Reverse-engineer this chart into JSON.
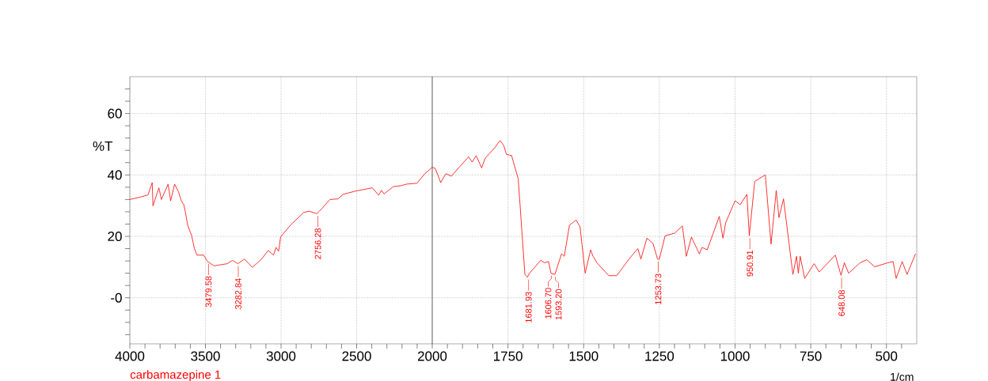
{
  "chart_data": [
    {
      "type": "line",
      "ylabel": "%T",
      "xlim": [
        4000,
        2000
      ],
      "ylim": [
        -15,
        72
      ],
      "grid": true,
      "marker": "none",
      "xticks": [
        4000,
        {
          "value": 3900,
          "label": null
        },
        {
          "value": 3800,
          "label": null
        },
        {
          "value": 3700,
          "label": null
        },
        {
          "value": 3600,
          "label": null
        },
        3500,
        {
          "value": 3400,
          "label": null
        },
        {
          "value": 3300,
          "label": null
        },
        {
          "value": 3200,
          "label": null
        },
        {
          "value": 3100,
          "label": null
        },
        3000,
        {
          "value": 2900,
          "label": null
        },
        {
          "value": 2800,
          "label": null
        },
        {
          "value": 2700,
          "label": null
        },
        {
          "value": 2600,
          "label": null
        },
        2500,
        {
          "value": 2400,
          "label": null
        },
        {
          "value": 2300,
          "label": null
        },
        {
          "value": 2200,
          "label": null
        },
        {
          "value": 2100,
          "label": null
        },
        2000
      ],
      "yticks": [
        {
          "value": -12,
          "label": null
        },
        {
          "value": -8,
          "label": null
        },
        {
          "value": -4,
          "label": null
        },
        {
          "value": 0,
          "label": "-0"
        },
        {
          "value": 4,
          "label": null
        },
        {
          "value": 8,
          "label": null
        },
        {
          "value": 12,
          "label": null
        },
        {
          "value": 16,
          "label": null
        },
        20,
        {
          "value": 24,
          "label": null
        },
        {
          "value": 28,
          "label": null
        },
        {
          "value": 32,
          "label": null
        },
        {
          "value": 36,
          "label": null
        },
        40,
        {
          "value": 44,
          "label": null
        },
        {
          "value": 48,
          "label": null
        },
        {
          "value": 52,
          "label": null
        },
        {
          "value": 56,
          "label": null
        },
        60,
        {
          "value": 64,
          "label": null
        },
        {
          "value": 68,
          "label": null
        }
      ],
      "x": [
        4000,
        3930,
        3880,
        3852,
        3847,
        3808,
        3791,
        3747,
        3730,
        3704,
        3678,
        3660,
        3643,
        3634,
        3617,
        3591,
        3573,
        3556,
        3512,
        3486,
        3443,
        3355,
        3321,
        3286,
        3242,
        3190,
        3129,
        3085,
        3050,
        3033,
        3016,
        3003,
        2937,
        2850,
        2815,
        2763,
        2746,
        2676,
        2624,
        2589,
        2502,
        2397,
        2354,
        2336,
        2319,
        2258,
        2206,
        2171,
        2101,
        2049,
        2000
      ],
      "series": [
        {
          "name": "carbamazepine 1",
          "color": "#ff0000",
          "values": [
            32.0,
            32.8,
            33.5,
            37.5,
            29.9,
            35.8,
            32.0,
            37.0,
            31.6,
            37.0,
            34.5,
            31.6,
            30.3,
            28.2,
            23.6,
            20.2,
            16.0,
            13.9,
            13.9,
            11.8,
            10.4,
            11.1,
            12.2,
            11.1,
            12.6,
            9.9,
            12.6,
            15.4,
            13.9,
            16.4,
            15.2,
            19.8,
            23.7,
            27.8,
            28.2,
            27.4,
            28.2,
            32.0,
            32.2,
            33.7,
            34.8,
            35.8,
            33.4,
            35.0,
            33.8,
            36.2,
            36.5,
            37.0,
            37.3,
            40.4,
            42.5
          ]
        }
      ],
      "annotations": [
        {
          "text": "3479.58",
          "x": 3479.58,
          "y": 11.8
        },
        {
          "text": "3282.84",
          "x": 3282.84,
          "y": 11.1
        },
        {
          "text": "2756.28",
          "x": 2756.28,
          "y": 27.4
        }
      ]
    },
    {
      "type": "line",
      "xlabel": "1/cm",
      "xlim": [
        2000,
        400
      ],
      "ylim": [
        -15,
        72
      ],
      "grid": true,
      "marker": "none",
      "tick_labels": "x",
      "xticks": [
        {
          "value": 1950,
          "label": null
        },
        {
          "value": 1900,
          "label": null
        },
        {
          "value": 1850,
          "label": null
        },
        {
          "value": 1800,
          "label": null
        },
        1750,
        {
          "value": 1700,
          "label": null
        },
        {
          "value": 1650,
          "label": null
        },
        {
          "value": 1600,
          "label": null
        },
        {
          "value": 1550,
          "label": null
        },
        1500,
        {
          "value": 1450,
          "label": null
        },
        {
          "value": 1400,
          "label": null
        },
        {
          "value": 1350,
          "label": null
        },
        {
          "value": 1300,
          "label": null
        },
        1250,
        {
          "value": 1200,
          "label": null
        },
        {
          "value": 1150,
          "label": null
        },
        {
          "value": 1100,
          "label": null
        },
        {
          "value": 1050,
          "label": null
        },
        1000,
        {
          "value": 950,
          "label": null
        },
        {
          "value": 900,
          "label": null
        },
        {
          "value": 850,
          "label": null
        },
        {
          "value": 800,
          "label": null
        },
        750,
        {
          "value": 700,
          "label": null
        },
        {
          "value": 650,
          "label": null
        },
        {
          "value": 600,
          "label": null
        },
        {
          "value": 550,
          "label": null
        },
        500,
        {
          "value": 450,
          "label": null
        }
      ],
      "yticks": [
        0,
        20,
        40,
        60
      ],
      "x": [
        2000,
        1990,
        1972,
        1955,
        1937,
        1911,
        1880,
        1868,
        1855,
        1837,
        1825,
        1794,
        1776,
        1764,
        1755,
        1738,
        1716,
        1703,
        1694,
        1686,
        1679,
        1660,
        1642,
        1629,
        1616,
        1608,
        1595,
        1573,
        1564,
        1547,
        1525,
        1512,
        1495,
        1477,
        1469,
        1456,
        1417,
        1391,
        1347,
        1321,
        1311,
        1291,
        1271,
        1256,
        1250,
        1231,
        1200,
        1174,
        1161,
        1144,
        1118,
        1109,
        1092,
        1052,
        1040,
        1031,
        1000,
        983,
        961,
        953,
        935,
        900,
        881,
        864,
        855,
        840,
        809,
        797,
        791,
        785,
        770,
        739,
        722,
        669,
        650,
        639,
        625,
        587,
        565,
        539,
        495,
        478,
        468,
        448,
        432,
        404
      ],
      "series": [
        {
          "color": "#ff0000",
          "values": [
            42.5,
            42.1,
            37.5,
            40.4,
            39.6,
            42.5,
            45.9,
            44.2,
            46.3,
            42.3,
            45.5,
            48.8,
            51.2,
            49.6,
            46.7,
            46.3,
            38.7,
            20.2,
            7.6,
            6.7,
            8.0,
            10.1,
            12.2,
            11.4,
            11.8,
            8.0,
            7.6,
            14.3,
            13.5,
            23.6,
            25.3,
            23.1,
            8.0,
            15.6,
            13.5,
            11.4,
            7.2,
            7.2,
            13.0,
            16.0,
            12.6,
            19.4,
            17.7,
            12.6,
            12.6,
            20.2,
            21.0,
            23.4,
            13.5,
            19.8,
            14.3,
            16.4,
            15.6,
            26.5,
            19.4,
            24.4,
            31.6,
            30.3,
            33.7,
            20.2,
            37.9,
            40.0,
            17.5,
            34.9,
            26.1,
            32.2,
            7.6,
            13.5,
            8.0,
            13.5,
            6.3,
            11.1,
            8.4,
            13.9,
            7.3,
            11.4,
            8.0,
            11.4,
            12.4,
            10.1,
            11.4,
            11.8,
            6.3,
            11.8,
            7.6,
            14.3
          ]
        }
      ],
      "annotations": [
        {
          "text": "1681.93",
          "x": 1681.93,
          "y": 6.7
        },
        {
          "text": "1606.70",
          "x": 1606.7,
          "y": 8.0
        },
        {
          "text": "1593.20",
          "x": 1593.2,
          "y": 7.6
        },
        {
          "text": "1253.73",
          "x": 1253.73,
          "y": 12.6
        },
        {
          "text": "950.91",
          "x": 950.91,
          "y": 20.2
        },
        {
          "text": "648.08",
          "x": 648.08,
          "y": 7.3
        }
      ]
    }
  ]
}
